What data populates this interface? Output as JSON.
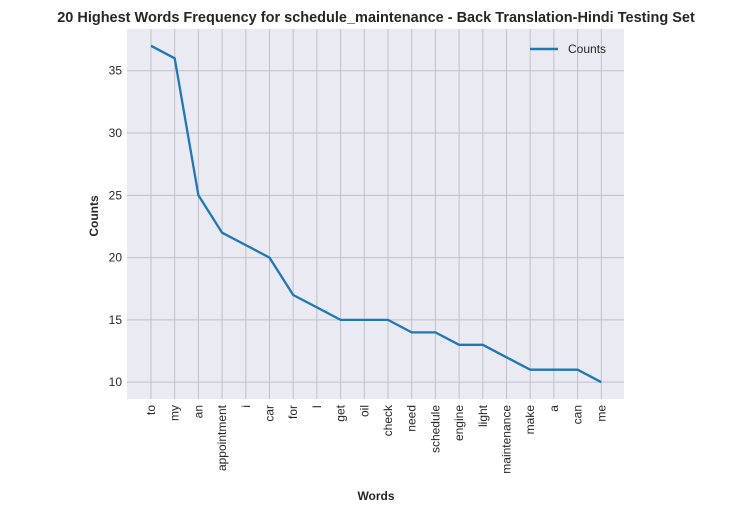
{
  "chart_data": {
    "type": "line",
    "title": "20 Highest Words Frequency for schedule_maintenance - Back Translation-Hindi Testing Set",
    "xlabel": "Words",
    "ylabel": "Counts",
    "categories": [
      "to",
      "my",
      "an",
      "appointment",
      "i",
      "car",
      "for",
      "I",
      "get",
      "oil",
      "check",
      "need",
      "schedule",
      "engine",
      "light",
      "maintenance",
      "make",
      "a",
      "can",
      "me"
    ],
    "series": [
      {
        "name": "Counts",
        "values": [
          37,
          36,
          25,
          22,
          21,
          20,
          17,
          16,
          15,
          15,
          15,
          14,
          14,
          13,
          13,
          12,
          11,
          11,
          11,
          10
        ]
      }
    ],
    "yticks": [
      10,
      15,
      20,
      25,
      30,
      35
    ],
    "ylim": [
      8.65,
      38.35
    ],
    "grid": true,
    "legend": "top-right",
    "colors": {
      "line": "#1f77b4",
      "plot_bg": "#eaeaf2",
      "grid": "#c0c0c8"
    }
  }
}
